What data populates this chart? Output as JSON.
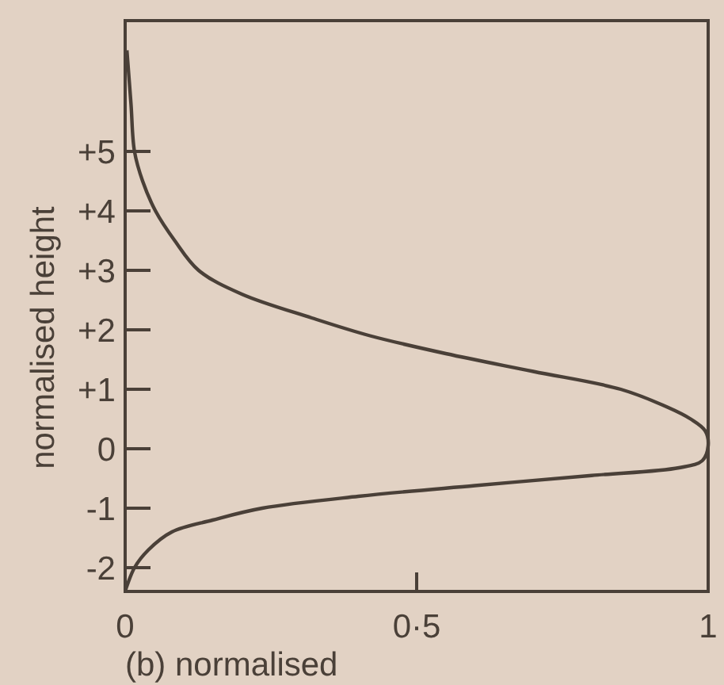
{
  "chart_data": {
    "type": "line",
    "xlabel": "(b) normalised",
    "ylabel": "normalised height",
    "x": [
      0.003,
      0.01,
      0.016,
      0.03,
      0.052,
      0.085,
      0.126,
      0.2,
      0.32,
      0.42,
      0.55,
      0.7,
      0.85,
      0.93,
      0.97,
      0.995,
      1.0,
      0.99,
      0.95,
      0.8,
      0.6,
      0.4,
      0.235,
      0.15,
      0.08,
      0.04,
      0.016,
      0
    ],
    "series": [
      {
        "color": "#4a4038",
        "values": [
          6.7,
          5.8,
          5.0,
          4.5,
          4.0,
          3.5,
          3.0,
          2.6,
          2.2,
          1.9,
          1.6,
          1.3,
          1.0,
          0.7,
          0.5,
          0.3,
          0.05,
          -0.2,
          -0.32,
          -0.45,
          -0.62,
          -0.8,
          -1.0,
          -1.2,
          -1.4,
          -1.7,
          -2.0,
          -2.4
        ]
      }
    ],
    "xlim": [
      0,
      1
    ],
    "ylim": [
      -2.4,
      7.2
    ],
    "xticks": [
      0,
      {
        "value": 0.5,
        "label": "0·5"
      },
      1
    ],
    "yticks": [
      {
        "value": -2,
        "label": "-2"
      },
      {
        "value": -1,
        "label": "-1"
      },
      0,
      {
        "value": 1,
        "label": "+1"
      },
      {
        "value": 2,
        "label": "+2"
      },
      {
        "value": 3,
        "label": "+3"
      },
      {
        "value": 4,
        "label": "+4"
      },
      {
        "value": 5,
        "label": "+5"
      }
    ],
    "marker": "none",
    "line_style": "solid"
  }
}
